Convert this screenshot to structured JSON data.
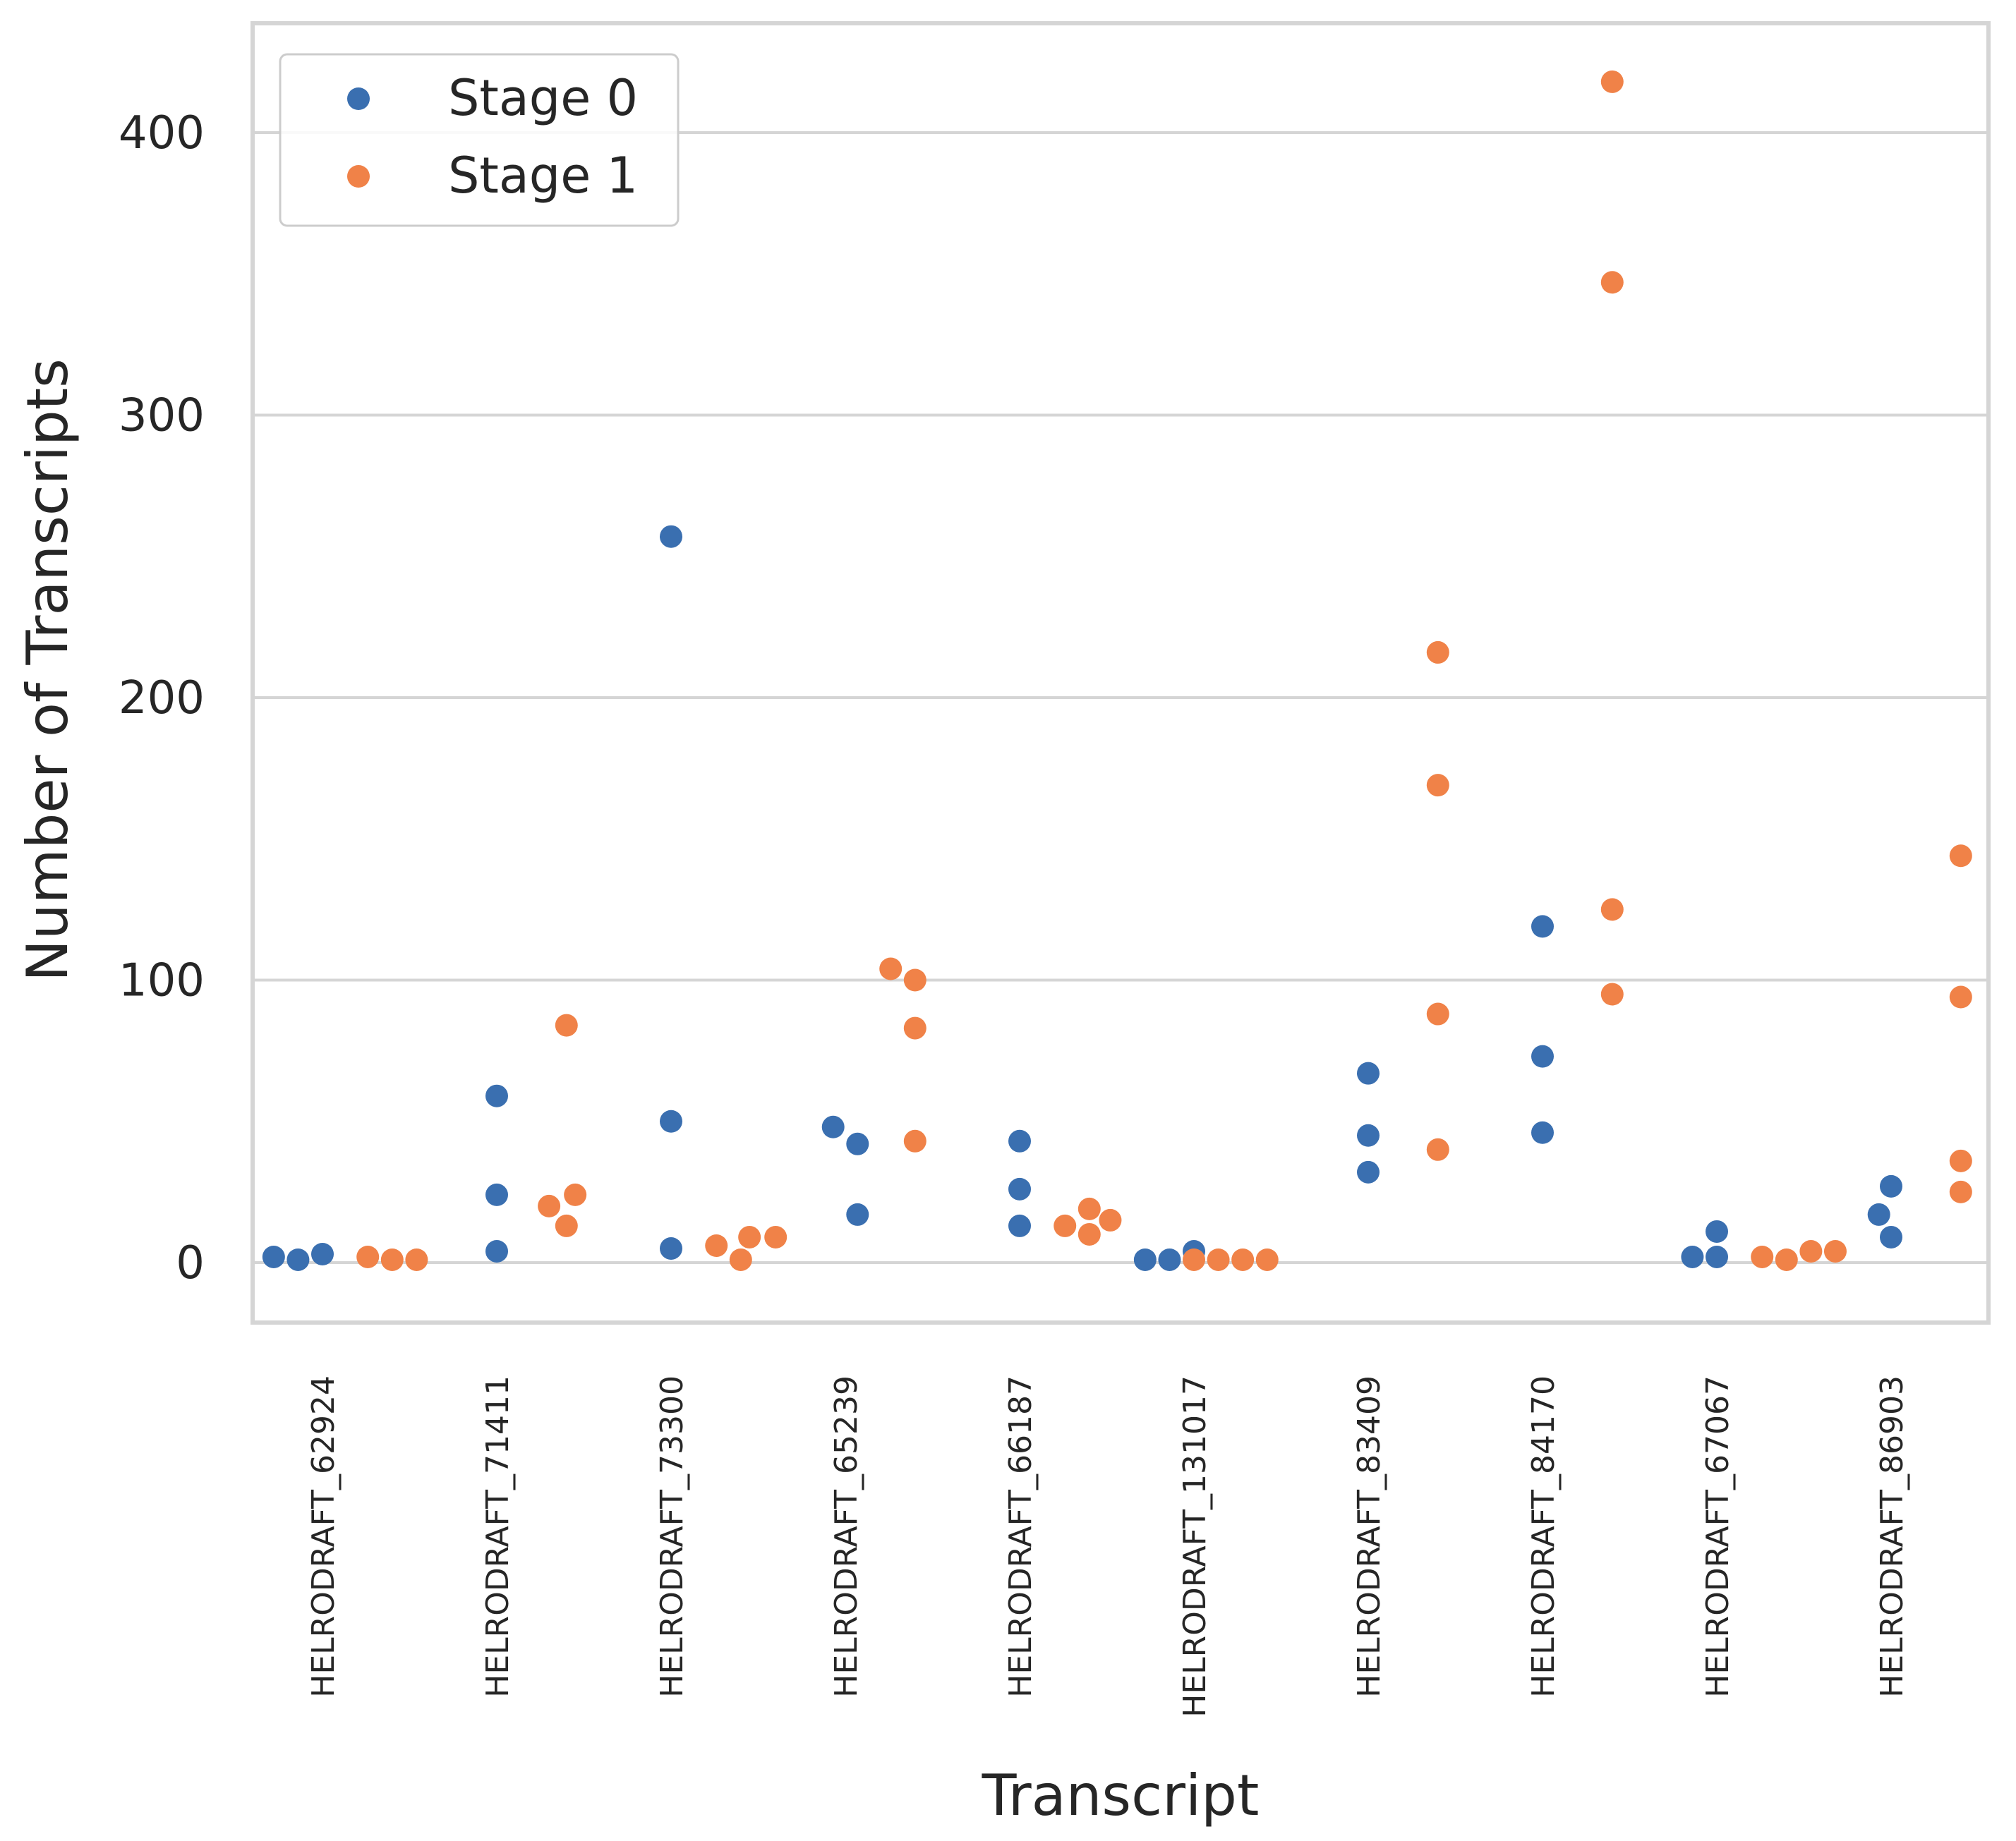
{
  "chart_data": {
    "type": "scatter",
    "title": "",
    "xlabel": "Transcript",
    "ylabel": "Number of Transcripts",
    "ylim": [
      -20,
      440
    ],
    "yticks": [
      0,
      100,
      200,
      300,
      400
    ],
    "grid": "horizontal",
    "legend_position": "top-left",
    "categories": [
      "HELRODRAFT_62924",
      "HELRODRAFT_71411",
      "HELRODRAFT_73300",
      "HELRODRAFT_65239",
      "HELRODRAFT_66187",
      "HELRODRAFT_131017",
      "HELRODRAFT_83409",
      "HELRODRAFT_84170",
      "HELRODRAFT_67067",
      "HELRODRAFT_86903"
    ],
    "series": [
      {
        "name": "Stage 0",
        "color": "#3a6fb0",
        "points": [
          {
            "category": 0,
            "offset": -0.28,
            "value": 2
          },
          {
            "category": 0,
            "offset": -0.14,
            "value": 1
          },
          {
            "category": 0,
            "offset": 0.0,
            "value": 3
          },
          {
            "category": 1,
            "offset": 0.0,
            "value": 59
          },
          {
            "category": 1,
            "offset": 0.0,
            "value": 24
          },
          {
            "category": 1,
            "offset": 0.0,
            "value": 4
          },
          {
            "category": 2,
            "offset": 0.0,
            "value": 257
          },
          {
            "category": 2,
            "offset": 0.0,
            "value": 50
          },
          {
            "category": 2,
            "offset": 0.0,
            "value": 5
          },
          {
            "category": 3,
            "offset": -0.07,
            "value": 48
          },
          {
            "category": 3,
            "offset": 0.07,
            "value": 42
          },
          {
            "category": 3,
            "offset": 0.07,
            "value": 17
          },
          {
            "category": 4,
            "offset": 0.0,
            "value": 43
          },
          {
            "category": 4,
            "offset": 0.0,
            "value": 26
          },
          {
            "category": 4,
            "offset": 0.0,
            "value": 13
          },
          {
            "category": 5,
            "offset": -0.28,
            "value": 1
          },
          {
            "category": 5,
            "offset": -0.14,
            "value": 1
          },
          {
            "category": 5,
            "offset": 0.0,
            "value": 4
          },
          {
            "category": 6,
            "offset": 0.0,
            "value": 67
          },
          {
            "category": 6,
            "offset": 0.0,
            "value": 45
          },
          {
            "category": 6,
            "offset": 0.0,
            "value": 32
          },
          {
            "category": 7,
            "offset": 0.0,
            "value": 119
          },
          {
            "category": 7,
            "offset": 0.0,
            "value": 73
          },
          {
            "category": 7,
            "offset": 0.0,
            "value": 46
          },
          {
            "category": 8,
            "offset": -0.14,
            "value": 2
          },
          {
            "category": 8,
            "offset": 0.0,
            "value": 2
          },
          {
            "category": 8,
            "offset": 0.0,
            "value": 11
          },
          {
            "category": 9,
            "offset": -0.07,
            "value": 17
          },
          {
            "category": 9,
            "offset": 0.0,
            "value": 27
          },
          {
            "category": 9,
            "offset": 0.0,
            "value": 9
          }
        ]
      },
      {
        "name": "Stage 1",
        "color": "#f08248",
        "points": [
          {
            "category": 0,
            "offset": 0.26,
            "value": 2
          },
          {
            "category": 0,
            "offset": 0.4,
            "value": 1
          },
          {
            "category": 0,
            "offset": 0.54,
            "value": 1
          },
          {
            "category": 1,
            "offset": 0.3,
            "value": 20
          },
          {
            "category": 1,
            "offset": 0.4,
            "value": 13
          },
          {
            "category": 1,
            "offset": 0.45,
            "value": 24
          },
          {
            "category": 1,
            "offset": 0.4,
            "value": 84
          },
          {
            "category": 2,
            "offset": 0.26,
            "value": 6
          },
          {
            "category": 2,
            "offset": 0.4,
            "value": 1
          },
          {
            "category": 2,
            "offset": 0.45,
            "value": 9
          },
          {
            "category": 2,
            "offset": 0.6,
            "value": 9
          },
          {
            "category": 3,
            "offset": 0.26,
            "value": 104
          },
          {
            "category": 3,
            "offset": 0.4,
            "value": 100
          },
          {
            "category": 3,
            "offset": 0.4,
            "value": 83
          },
          {
            "category": 3,
            "offset": 0.4,
            "value": 43
          },
          {
            "category": 4,
            "offset": 0.26,
            "value": 13
          },
          {
            "category": 4,
            "offset": 0.4,
            "value": 10
          },
          {
            "category": 4,
            "offset": 0.4,
            "value": 19
          },
          {
            "category": 4,
            "offset": 0.52,
            "value": 15
          },
          {
            "category": 5,
            "offset": 0.0,
            "value": 1
          },
          {
            "category": 5,
            "offset": 0.14,
            "value": 1
          },
          {
            "category": 5,
            "offset": 0.28,
            "value": 1
          },
          {
            "category": 5,
            "offset": 0.42,
            "value": 1
          },
          {
            "category": 6,
            "offset": 0.4,
            "value": 216
          },
          {
            "category": 6,
            "offset": 0.4,
            "value": 169
          },
          {
            "category": 6,
            "offset": 0.4,
            "value": 88
          },
          {
            "category": 6,
            "offset": 0.4,
            "value": 40
          },
          {
            "category": 7,
            "offset": 0.4,
            "value": 418
          },
          {
            "category": 7,
            "offset": 0.4,
            "value": 347
          },
          {
            "category": 7,
            "offset": 0.4,
            "value": 125
          },
          {
            "category": 7,
            "offset": 0.4,
            "value": 95
          },
          {
            "category": 8,
            "offset": 0.26,
            "value": 2
          },
          {
            "category": 8,
            "offset": 0.4,
            "value": 1
          },
          {
            "category": 8,
            "offset": 0.54,
            "value": 4
          },
          {
            "category": 8,
            "offset": 0.68,
            "value": 4
          },
          {
            "category": 9,
            "offset": 0.4,
            "value": 144
          },
          {
            "category": 9,
            "offset": 0.4,
            "value": 94
          },
          {
            "category": 9,
            "offset": 0.4,
            "value": 36
          },
          {
            "category": 9,
            "offset": 0.4,
            "value": 25
          }
        ]
      }
    ]
  }
}
